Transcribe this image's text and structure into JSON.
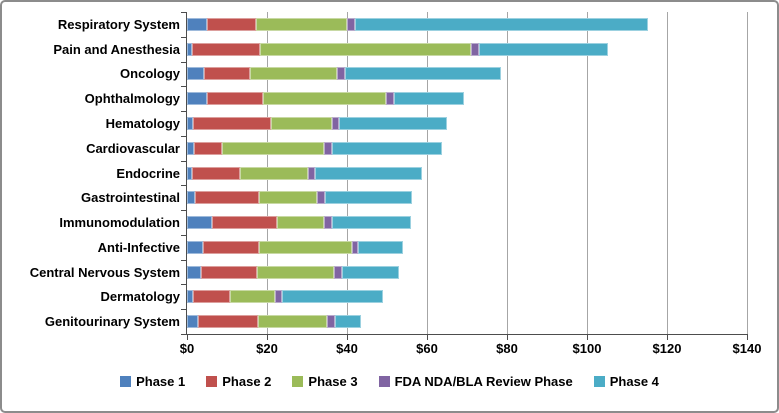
{
  "chart_data": {
    "type": "bar",
    "orientation": "horizontal",
    "stacked": true,
    "grid": true,
    "legend_position": "bottom",
    "categories": [
      "Respiratory System",
      "Pain and Anesthesia",
      "Oncology",
      "Ophthalmology",
      "Hematology",
      "Cardiovascular",
      "Endocrine",
      "Gastrointestinal",
      "Immunomodulation",
      "Anti-Infective",
      "Central Nervous System",
      "Dermatology",
      "Genitourinary System"
    ],
    "series": [
      {
        "name": "Phase 1",
        "color": "#4F81BD",
        "values": [
          5,
          1.25,
          4.25,
          5,
          1.5,
          1.75,
          1.25,
          2,
          6.25,
          4,
          3.5,
          1.5,
          2.75
        ]
      },
      {
        "name": "Phase 2",
        "color": "#C0504D",
        "values": [
          12.25,
          17,
          11.5,
          14,
          19.5,
          7,
          12,
          16,
          16.25,
          14,
          14,
          9.25,
          15
        ]
      },
      {
        "name": "Phase 3",
        "color": "#9BBB59",
        "values": [
          22.75,
          52.75,
          21.75,
          30.75,
          15.25,
          25.5,
          17,
          14.5,
          11.75,
          23.25,
          19.25,
          11.25,
          17.25
        ]
      },
      {
        "name": "FDA NDA/BLA Review Phase",
        "color": "#8064A2",
        "values": [
          2,
          2,
          2,
          2,
          1.75,
          2,
          1.75,
          2,
          2,
          1.5,
          2,
          1.75,
          2
        ]
      },
      {
        "name": "Phase 4",
        "color": "#4BACC6",
        "values": [
          73.25,
          32.25,
          39,
          17.5,
          27,
          27.5,
          26.75,
          21.75,
          19.75,
          11.25,
          14.25,
          25.25,
          6.5
        ]
      }
    ],
    "x_axis": {
      "min": 0,
      "max": 140,
      "tick_step": 20,
      "tick_labels": [
        "$0",
        "$20",
        "$40",
        "$60",
        "$80",
        "$100",
        "$120",
        "$140"
      ]
    }
  },
  "style": {
    "gridline_color": "#a6a6a6",
    "axis_color": "#4d4d4d",
    "text_color": "#000000",
    "background_color": "#ffffff",
    "border_color": "#8c8c8c"
  }
}
